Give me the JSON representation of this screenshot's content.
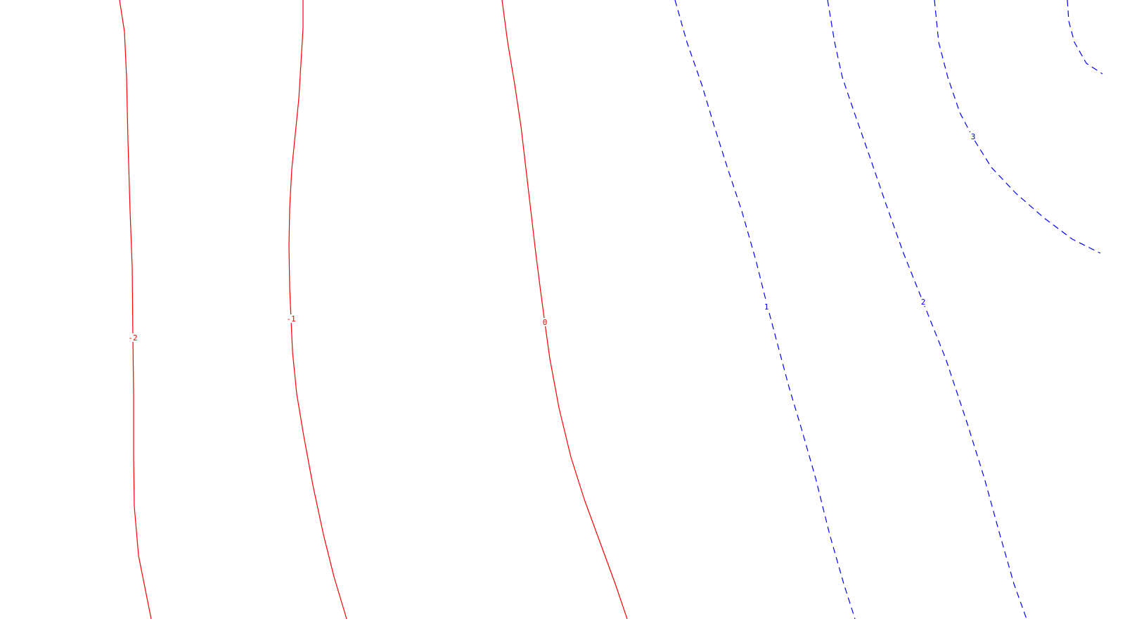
{
  "chart_data": {
    "type": "contour",
    "title": "",
    "xlabel": "",
    "ylabel": "",
    "grid": false,
    "legend": "none",
    "colors": {
      "negative": "#ff0000",
      "positive": "#0000ff"
    },
    "levels": [
      {
        "value": -2,
        "label": "-2",
        "style": "solid"
      },
      {
        "value": -1,
        "label": "-1",
        "style": "solid"
      },
      {
        "value": 0,
        "label": "0",
        "style": "solid"
      },
      {
        "value": 1,
        "label": "1",
        "style": "dashed"
      },
      {
        "value": 2,
        "label": "2",
        "style": "dashed"
      },
      {
        "value": 3,
        "label": "3",
        "style": "dashed"
      },
      {
        "value": 4,
        "label": "",
        "style": "dashed"
      }
    ]
  }
}
